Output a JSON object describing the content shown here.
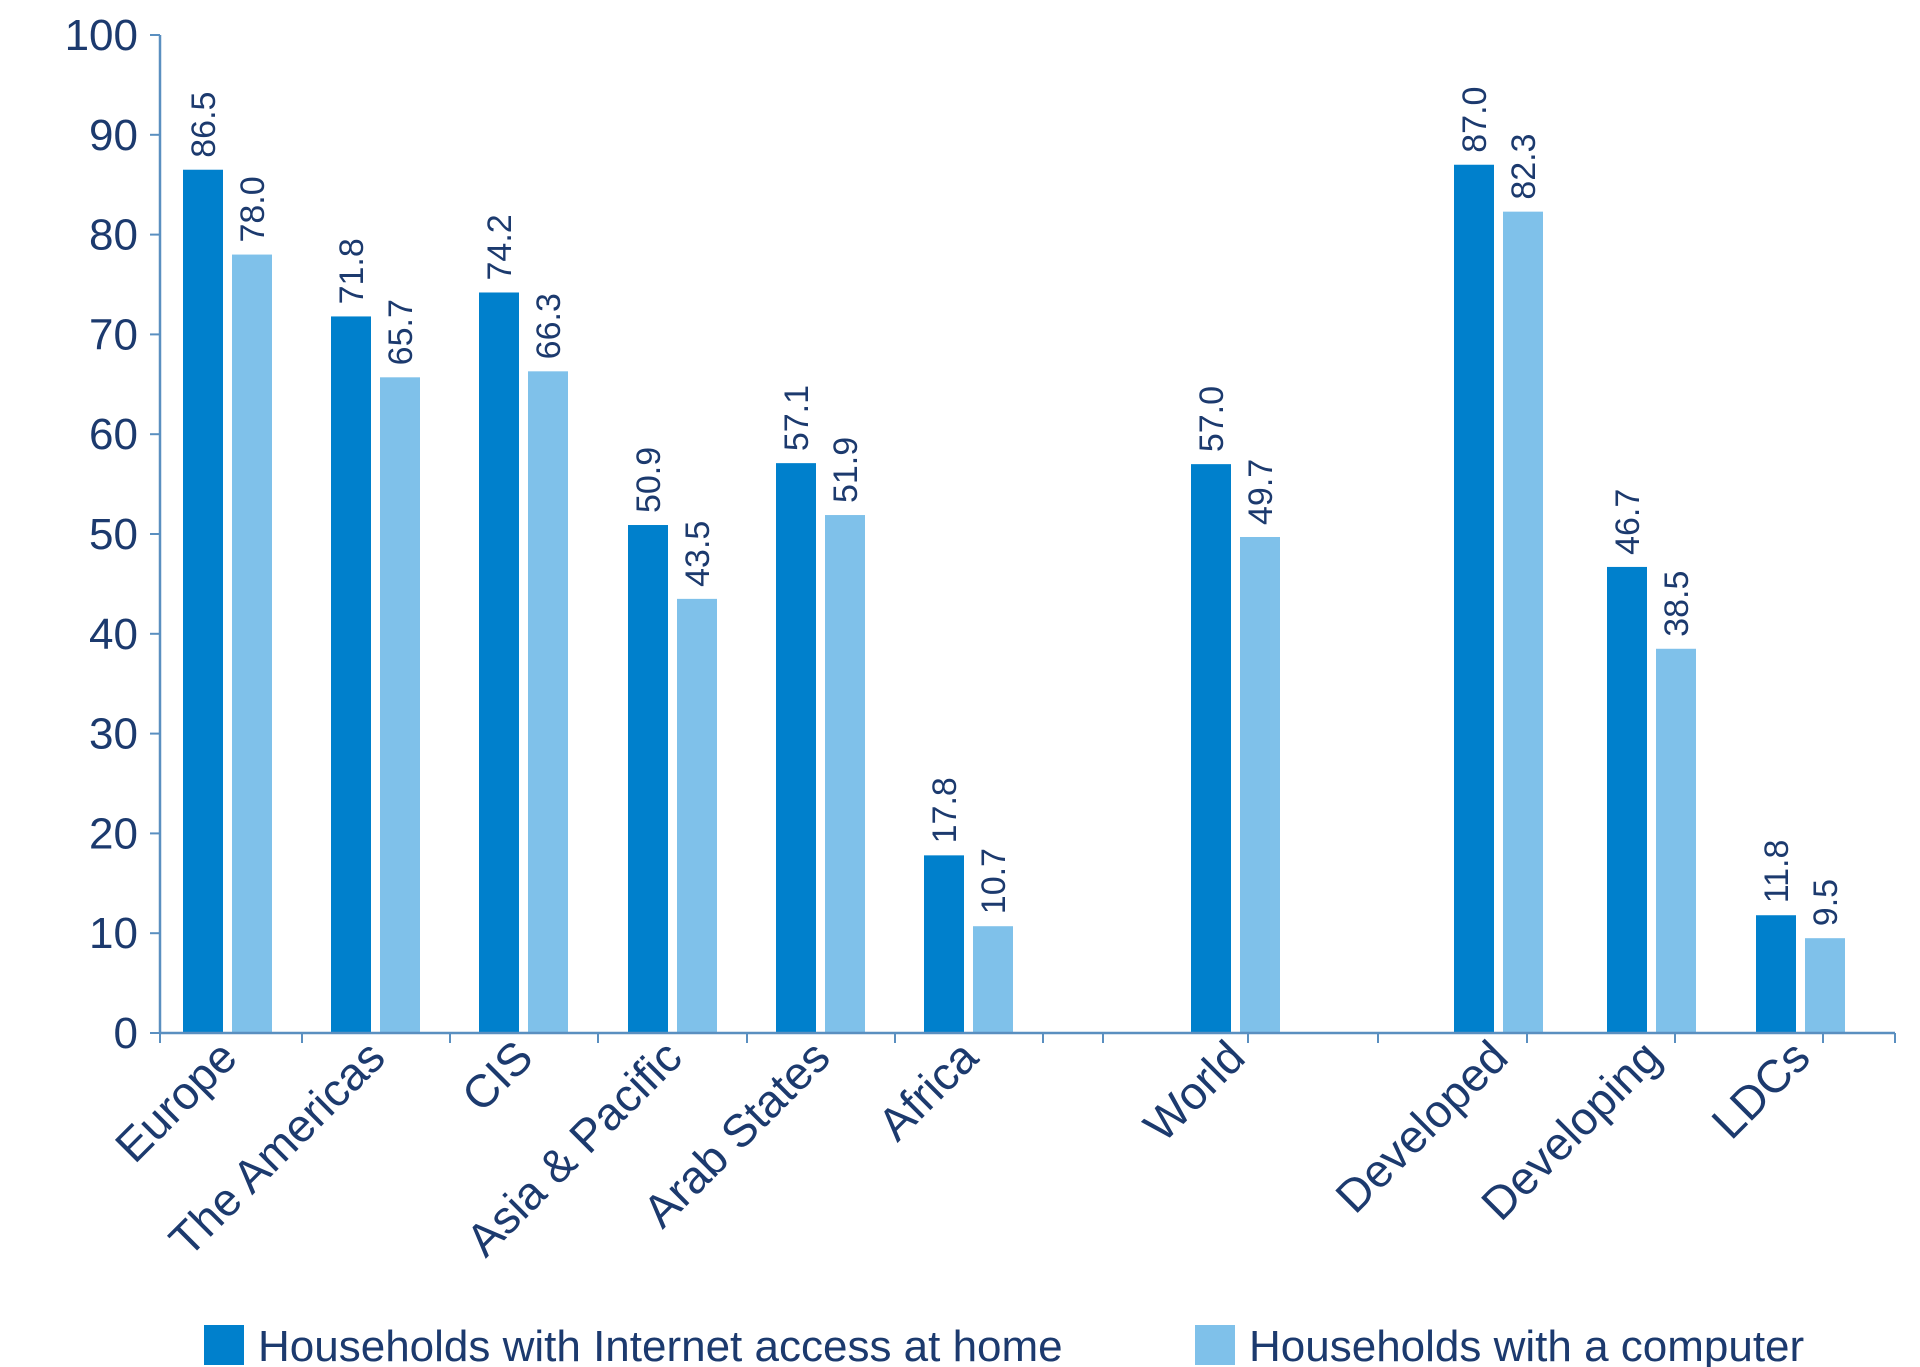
{
  "chart_data": {
    "type": "bar",
    "categories": [
      "Europe",
      "The Americas",
      "CIS",
      "Asia & Pacific",
      "Arab States",
      "Africa",
      "World",
      "Developed",
      "Developing",
      "LDCs"
    ],
    "series": [
      {
        "name": "Households with Internet access at home",
        "color": "#0080cc",
        "values": [
          86.5,
          71.8,
          74.2,
          50.9,
          57.1,
          17.8,
          57.0,
          87.0,
          46.7,
          11.8
        ],
        "labels": [
          "86.5",
          "71.8",
          "74.2",
          "50.9",
          "57.1",
          "17.8",
          "57.0",
          "87.0",
          "46.7",
          "11.8"
        ]
      },
      {
        "name": "Households with a computer",
        "color": "#7fc1ea",
        "values": [
          78.0,
          65.7,
          66.3,
          43.5,
          51.9,
          10.7,
          49.7,
          82.3,
          38.5,
          9.5
        ],
        "labels": [
          "78.0",
          "65.7",
          "66.3",
          "43.5",
          "51.9",
          "10.7",
          "49.7",
          "82.3",
          "38.5",
          "9.5"
        ]
      }
    ],
    "yticks": [
      "0",
      "10",
      "20",
      "30",
      "40",
      "50",
      "60",
      "70",
      "80",
      "90",
      "100"
    ],
    "ylim": [
      0,
      100
    ],
    "grid": false,
    "legend_position": "bottom",
    "axis_color": "#5a8fc0",
    "text_color": "#1c3a6e"
  }
}
